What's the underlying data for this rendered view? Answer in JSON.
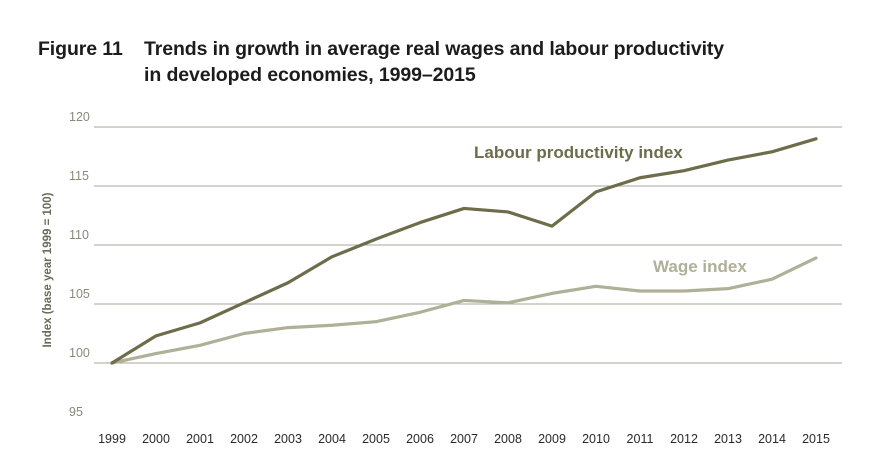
{
  "title": {
    "figure_label": "Figure 11",
    "line1": "Trends in growth in average real wages and labour productivity",
    "line2": "in developed economies, 1999–2015"
  },
  "colors": {
    "productivity": "#6d6c4b",
    "wage": "#b0af98",
    "grid": "#8a8a7a"
  },
  "chart_data": {
    "type": "line",
    "ylabel": "Index (base year 1999 = 100)",
    "xlabel": "",
    "ylim": [
      95,
      120
    ],
    "yticks": [
      95,
      100,
      105,
      110,
      115,
      120
    ],
    "grid": "horizontal",
    "categories": [
      "1999",
      "2000",
      "2001",
      "2002",
      "2003",
      "2004",
      "2005",
      "2006",
      "2007",
      "2008",
      "2009",
      "2010",
      "2011",
      "2012",
      "2013",
      "2014",
      "2015"
    ],
    "series": [
      {
        "name": "Labour productivity index",
        "values": [
          100,
          102.3,
          103.4,
          105.1,
          106.8,
          109.0,
          110.5,
          111.9,
          113.1,
          112.8,
          111.6,
          114.5,
          115.7,
          116.3,
          117.2,
          117.9,
          119.0
        ]
      },
      {
        "name": "Wage index",
        "values": [
          100,
          100.8,
          101.5,
          102.5,
          103.0,
          103.2,
          103.5,
          104.3,
          105.3,
          105.1,
          105.9,
          106.5,
          106.1,
          106.1,
          106.3,
          107.1,
          108.9
        ]
      }
    ]
  }
}
